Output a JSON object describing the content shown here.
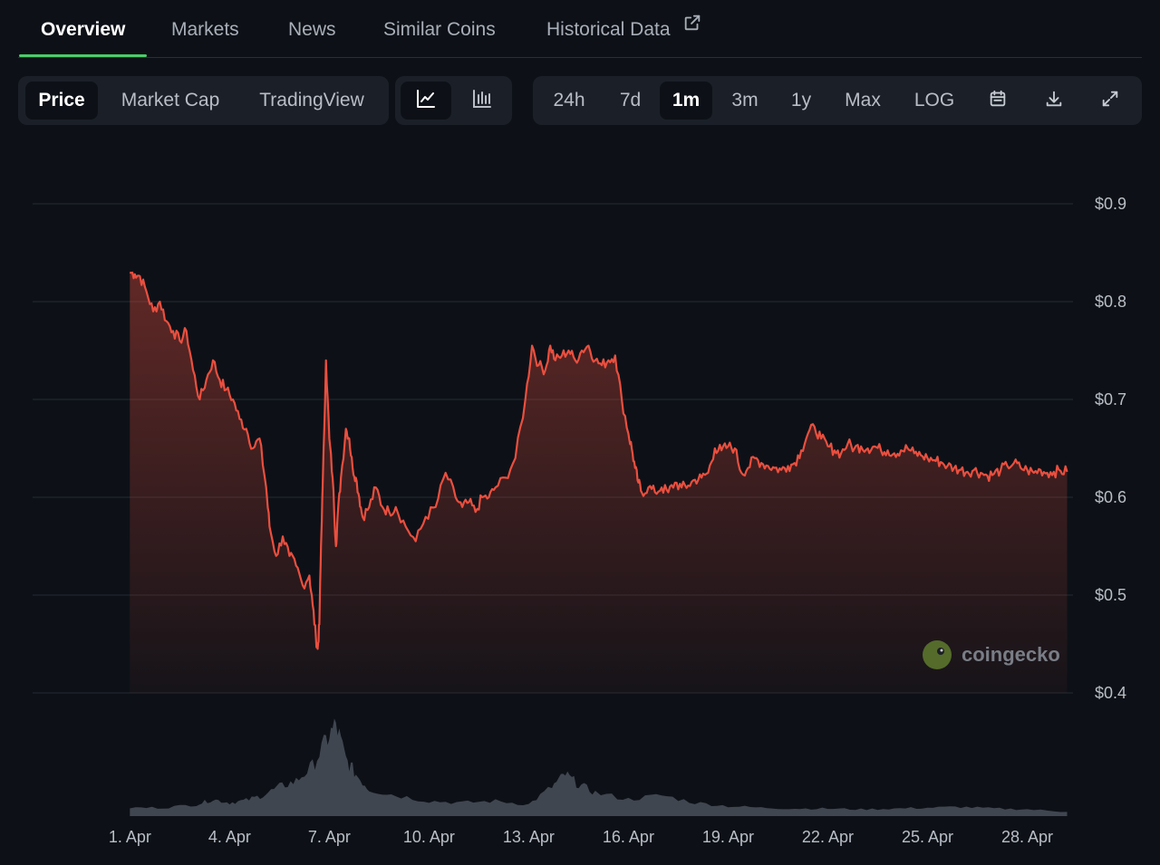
{
  "tabs": [
    {
      "label": "Overview",
      "active": true
    },
    {
      "label": "Markets",
      "active": false
    },
    {
      "label": "News",
      "active": false
    },
    {
      "label": "Similar Coins",
      "active": false
    },
    {
      "label": "Historical Data",
      "active": false
    }
  ],
  "chart_type_toggle": {
    "price": "Price",
    "market_cap": "Market Cap",
    "tradingview": "TradingView"
  },
  "view_toggle": {
    "line": "line-chart-icon",
    "candle": "candlestick-chart-icon"
  },
  "ranges": {
    "h24": "24h",
    "d7": "7d",
    "m1": "1m",
    "m3": "3m",
    "y1": "1y",
    "max": "Max",
    "log": "LOG"
  },
  "tools": {
    "calendar": "calendar-icon",
    "download": "download-icon",
    "fullscreen": "expand-icon"
  },
  "watermark": "coingecko",
  "colors": {
    "price_line": "#ea4f3f",
    "volume": "#6b7380",
    "active_tab_underline": "#4bcc6a"
  },
  "chart_data": {
    "type": "line",
    "series": [
      {
        "x_day": [
          0,
          0.15,
          0.3,
          0.5,
          0.7,
          0.9,
          1.1,
          1.3,
          1.5,
          1.7,
          1.9,
          2.1,
          2.3,
          2.5,
          2.7,
          2.9,
          3.1,
          3.3,
          3.5,
          3.7,
          3.9,
          4.1,
          4.2,
          4.4,
          4.6,
          4.8,
          5.0,
          5.2,
          5.4,
          5.5,
          5.6,
          5.65,
          5.7,
          5.75,
          5.8,
          5.9,
          6.0,
          6.1,
          6.2,
          6.25,
          6.35,
          6.5,
          6.6,
          6.7,
          6.8,
          6.9,
          7.0,
          7.2,
          7.4,
          7.6,
          7.8,
          8.0,
          8.3,
          8.6,
          8.9,
          9.2,
          9.5,
          9.8,
          10.0,
          10.2,
          10.4,
          10.6,
          10.8,
          11.0,
          11.3,
          11.6,
          11.9,
          12.1,
          12.3,
          12.5,
          12.65,
          12.8,
          13.0,
          13.2,
          13.4,
          13.6,
          13.8,
          14.0,
          14.2,
          14.4,
          14.6,
          14.8,
          15.0,
          15.1,
          15.2,
          15.3,
          15.4,
          15.6,
          15.8,
          16.0,
          16.2,
          16.4,
          16.6,
          16.8,
          17.0,
          17.2,
          17.4,
          17.6,
          17.8,
          18.0,
          18.2,
          18.4,
          18.6,
          18.8,
          19.0,
          19.2,
          19.4,
          19.6,
          19.8,
          20.0,
          20.2,
          20.4,
          20.6,
          20.8,
          21.0,
          21.2,
          21.4,
          21.6,
          21.8,
          22.0,
          22.2,
          22.4,
          22.6,
          22.8,
          23.0,
          23.2,
          23.4,
          23.6,
          23.8,
          24.0,
          24.2,
          24.4,
          24.6,
          24.8,
          25.0,
          25.2,
          25.4,
          25.6,
          25.8,
          26.0,
          26.2,
          26.4,
          26.6,
          26.8,
          27.0,
          27.2,
          27.4,
          27.6,
          27.8,
          28.0,
          28.2
        ],
        "y": [
          0.83,
          0.828,
          0.826,
          0.81,
          0.79,
          0.8,
          0.78,
          0.77,
          0.76,
          0.77,
          0.73,
          0.7,
          0.72,
          0.74,
          0.72,
          0.71,
          0.7,
          0.68,
          0.67,
          0.65,
          0.66,
          0.61,
          0.57,
          0.54,
          0.56,
          0.54,
          0.53,
          0.51,
          0.52,
          0.49,
          0.455,
          0.445,
          0.47,
          0.55,
          0.61,
          0.74,
          0.66,
          0.62,
          0.55,
          0.58,
          0.62,
          0.67,
          0.66,
          0.63,
          0.62,
          0.6,
          0.58,
          0.59,
          0.61,
          0.59,
          0.585,
          0.59,
          0.57,
          0.555,
          0.58,
          0.59,
          0.625,
          0.6,
          0.59,
          0.595,
          0.585,
          0.6,
          0.6,
          0.61,
          0.62,
          0.64,
          0.7,
          0.755,
          0.735,
          0.73,
          0.755,
          0.74,
          0.745,
          0.75,
          0.74,
          0.75,
          0.755,
          0.74,
          0.735,
          0.74,
          0.745,
          0.7,
          0.665,
          0.65,
          0.63,
          0.615,
          0.605,
          0.61,
          0.605,
          0.61,
          0.605,
          0.615,
          0.61,
          0.612,
          0.618,
          0.62,
          0.625,
          0.65,
          0.648,
          0.652,
          0.65,
          0.625,
          0.63,
          0.64,
          0.635,
          0.632,
          0.63,
          0.628,
          0.632,
          0.635,
          0.648,
          0.665,
          0.672,
          0.66,
          0.652,
          0.648,
          0.645,
          0.655,
          0.65,
          0.652,
          0.65,
          0.652,
          0.648,
          0.648,
          0.645,
          0.648,
          0.65,
          0.645,
          0.643,
          0.64,
          0.638,
          0.636,
          0.632,
          0.63,
          0.628,
          0.626,
          0.628,
          0.625,
          0.622,
          0.624,
          0.628,
          0.632,
          0.635,
          0.63,
          0.628,
          0.625,
          0.628,
          0.625,
          0.626,
          0.627,
          0.626
        ]
      },
      {
        "x_day": [
          0,
          1,
          2,
          2.5,
          3,
          3.5,
          4,
          4.5,
          5,
          5.5,
          5.9,
          6.2,
          6.5,
          6.8,
          7.2,
          8,
          9,
          10,
          11,
          12,
          12.7,
          13.1,
          13.5,
          14,
          15,
          16,
          17,
          18,
          19,
          20,
          21,
          22,
          23,
          24,
          25,
          26,
          27,
          28.2
        ],
        "y": [
          10,
          10,
          14,
          20,
          16,
          19,
          25,
          35,
          42,
          60,
          90,
          110,
          68,
          50,
          32,
          25,
          18,
          16,
          18,
          14,
          35,
          50,
          38,
          28,
          20,
          25,
          16,
          12,
          10,
          9,
          9,
          8,
          9,
          10,
          11,
          9,
          8,
          5
        ]
      }
    ],
    "ylim": [
      0.4,
      0.9
    ],
    "yticks": [
      "$0.9",
      "$0.8",
      "$0.7",
      "$0.6",
      "$0.5",
      "$0.4"
    ],
    "xticks": [
      "1. Apr",
      "4. Apr",
      "7. Apr",
      "10. Apr",
      "13. Apr",
      "16. Apr",
      "19. Apr",
      "22. Apr",
      "25. Apr",
      "28. Apr"
    ],
    "grid": true
  }
}
